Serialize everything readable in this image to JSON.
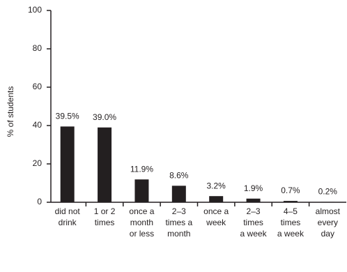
{
  "chart_data": {
    "type": "bar",
    "y_label": "% of students",
    "categories": [
      [
        "did not",
        "drink"
      ],
      [
        "1 or 2",
        "times"
      ],
      [
        "once a",
        "month",
        "or less"
      ],
      [
        "2–3",
        "times a",
        "month"
      ],
      [
        "once a",
        "week"
      ],
      [
        "2–3",
        "times",
        "a week"
      ],
      [
        "4–5",
        "times",
        "a week"
      ],
      [
        "almost",
        "every",
        "day"
      ]
    ],
    "values": [
      39.5,
      39.0,
      11.9,
      8.6,
      3.2,
      1.9,
      0.7,
      0.2
    ],
    "value_labels": [
      "39.5%",
      "39.0%",
      "11.9%",
      "8.6%",
      "3.2%",
      "1.9%",
      "0.7%",
      "0.2%"
    ],
    "color": "#231f20",
    "ylim": [
      0,
      100
    ],
    "yticks": [
      0,
      20,
      40,
      60,
      80,
      100
    ]
  }
}
